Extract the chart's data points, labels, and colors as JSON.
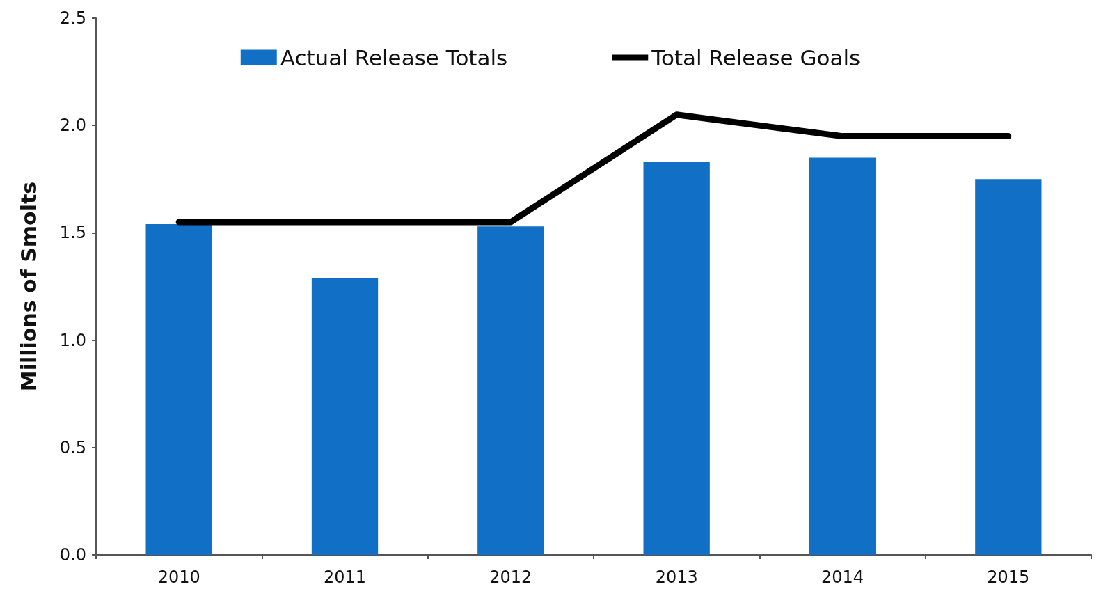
{
  "chart_data": {
    "type": "bar",
    "ylabel": "Millions of Smolts",
    "categories": [
      "2010",
      "2011",
      "2012",
      "2013",
      "2014",
      "2015"
    ],
    "series": [
      {
        "name": "Actual Release Totals",
        "color": "#1170c6",
        "values": [
          1.54,
          1.29,
          1.53,
          1.83,
          1.85,
          1.75
        ]
      },
      {
        "name": "Total Release Goals",
        "type": "line",
        "color": "#000000",
        "values": [
          1.55,
          1.55,
          1.55,
          2.05,
          1.95,
          1.95
        ]
      }
    ],
    "ylim": [
      0,
      2.5
    ],
    "yticks": [
      {
        "value": 0,
        "label": "0.0"
      },
      {
        "value": 0.5,
        "label": "0.5"
      },
      {
        "value": 1,
        "label": "1.0"
      },
      {
        "value": 1.5,
        "label": "1.5"
      },
      {
        "value": 2,
        "label": "2.0"
      },
      {
        "value": 2.5,
        "label": "2.5"
      }
    ],
    "grid": false,
    "legend": "top",
    "marker": "none",
    "line_style": "solid"
  }
}
